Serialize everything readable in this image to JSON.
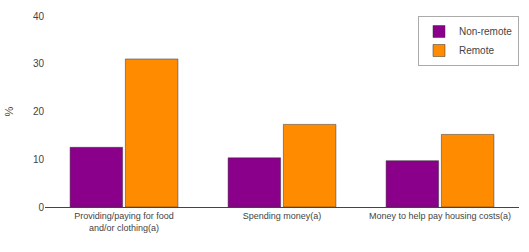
{
  "chart_data": {
    "type": "bar",
    "categories": [
      "Providing/paying for food\nand/or clothing(a)",
      "Spending money(a)",
      "Money to help pay housing costs(a)"
    ],
    "series": [
      {
        "name": "Non-remote",
        "color": "#8B008B",
        "values": [
          12.5,
          10.3,
          9.7
        ]
      },
      {
        "name": "Remote",
        "color": "#FF8C00",
        "values": [
          31.0,
          17.3,
          15.2
        ]
      }
    ],
    "ylabel": "%",
    "ylim": [
      0,
      40
    ],
    "yticks": [
      0,
      10,
      20,
      30,
      40
    ],
    "grid": false,
    "legend": "upper right"
  }
}
